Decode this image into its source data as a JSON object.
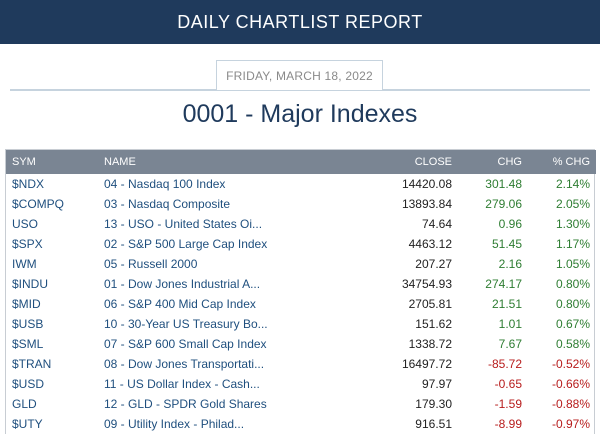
{
  "header": {
    "title": "DAILY CHARTLIST REPORT"
  },
  "report_date": "FRIDAY, MARCH 18, 2022",
  "list_title": "0001 - Major Indexes",
  "table": {
    "columns": [
      "SYM",
      "NAME",
      "CLOSE",
      "CHG",
      "% CHG"
    ],
    "rows": [
      {
        "sym": "$NDX",
        "name": "04 - Nasdaq 100 Index",
        "close": "14420.08",
        "chg": "301.48",
        "pct": "2.14%",
        "dir": "up"
      },
      {
        "sym": "$COMPQ",
        "name": "03 - Nasdaq Composite",
        "close": "13893.84",
        "chg": "279.06",
        "pct": "2.05%",
        "dir": "up"
      },
      {
        "sym": "USO",
        "name": "13 - USO - United States Oi...",
        "close": "74.64",
        "chg": "0.96",
        "pct": "1.30%",
        "dir": "up"
      },
      {
        "sym": "$SPX",
        "name": "02 - S&P 500 Large Cap Index",
        "close": "4463.12",
        "chg": "51.45",
        "pct": "1.17%",
        "dir": "up"
      },
      {
        "sym": "IWM",
        "name": "05 - Russell 2000",
        "close": "207.27",
        "chg": "2.16",
        "pct": "1.05%",
        "dir": "up"
      },
      {
        "sym": "$INDU",
        "name": "01 - Dow Jones Industrial A...",
        "close": "34754.93",
        "chg": "274.17",
        "pct": "0.80%",
        "dir": "up"
      },
      {
        "sym": "$MID",
        "name": "06 - S&P 400 Mid Cap Index",
        "close": "2705.81",
        "chg": "21.51",
        "pct": "0.80%",
        "dir": "up"
      },
      {
        "sym": "$USB",
        "name": "10 - 30-Year US Treasury Bo...",
        "close": "151.62",
        "chg": "1.01",
        "pct": "0.67%",
        "dir": "up"
      },
      {
        "sym": "$SML",
        "name": "07 - S&P 600 Small Cap Index",
        "close": "1338.72",
        "chg": "7.67",
        "pct": "0.58%",
        "dir": "up"
      },
      {
        "sym": "$TRAN",
        "name": "08 - Dow Jones Transportati...",
        "close": "16497.72",
        "chg": "-85.72",
        "pct": "-0.52%",
        "dir": "down"
      },
      {
        "sym": "$USD",
        "name": "11 - US Dollar Index - Cash...",
        "close": "97.97",
        "chg": "-0.65",
        "pct": "-0.66%",
        "dir": "down"
      },
      {
        "sym": "GLD",
        "name": "12 - GLD - SPDR Gold Shares",
        "close": "179.30",
        "chg": "-1.59",
        "pct": "-0.88%",
        "dir": "down"
      },
      {
        "sym": "$UTY",
        "name": "09 - Utility Index - Philad...",
        "close": "916.51",
        "chg": "-8.99",
        "pct": "-0.97%",
        "dir": "down"
      }
    ]
  },
  "colors": {
    "banner": "#1f3a5c",
    "table_header": "#7a8593",
    "positive": "#2e7d32",
    "negative": "#b71c1c",
    "link": "#1f4f7e"
  }
}
